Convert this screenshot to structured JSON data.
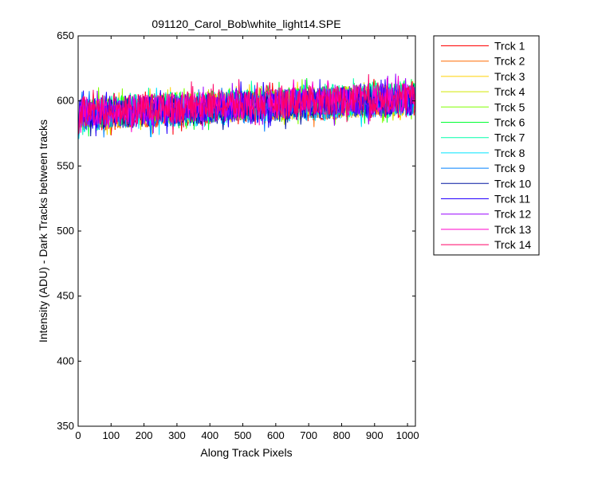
{
  "chart_data": {
    "type": "line",
    "title": "091120_Carol_Bob\\white_light14.SPE",
    "xlabel": "Along Track Pixels",
    "ylabel": "Intensity (ADU) - Dark Tracks between tracks",
    "xlim": [
      0,
      1024
    ],
    "ylim": [
      350,
      650
    ],
    "xticks": [
      "0",
      "100",
      "200",
      "300",
      "400",
      "500",
      "600",
      "700",
      "800",
      "900",
      "1000"
    ],
    "yticks": [
      "350",
      "400",
      "450",
      "500",
      "550",
      "600",
      "650"
    ],
    "grid": false,
    "legend_position": "outside-right",
    "x": [
      0,
      1024
    ],
    "trend": {
      "description_values": "each series is noisy around a slowly rising baseline",
      "start_level": 590,
      "end_level": 602,
      "noise_amplitude": 12
    },
    "series": [
      {
        "name": "Trck 1",
        "color": "#ff0000"
      },
      {
        "name": "Trck 2",
        "color": "#ff6a00"
      },
      {
        "name": "Trck 3",
        "color": "#ffd200"
      },
      {
        "name": "Trck 4",
        "color": "#d2e600"
      },
      {
        "name": "Trck 5",
        "color": "#80ff00"
      },
      {
        "name": "Trck 6",
        "color": "#00ff33"
      },
      {
        "name": "Trck 7",
        "color": "#00ffaa"
      },
      {
        "name": "Trck 8",
        "color": "#00e5ff"
      },
      {
        "name": "Trck 9",
        "color": "#0080ff"
      },
      {
        "name": "Trck 10",
        "color": "#0015a0"
      },
      {
        "name": "Trck 11",
        "color": "#2400ff"
      },
      {
        "name": "Trck 12",
        "color": "#9900ff"
      },
      {
        "name": "Trck 13",
        "color": "#ff00cc"
      },
      {
        "name": "Trck 14",
        "color": "#ff0066"
      }
    ]
  }
}
